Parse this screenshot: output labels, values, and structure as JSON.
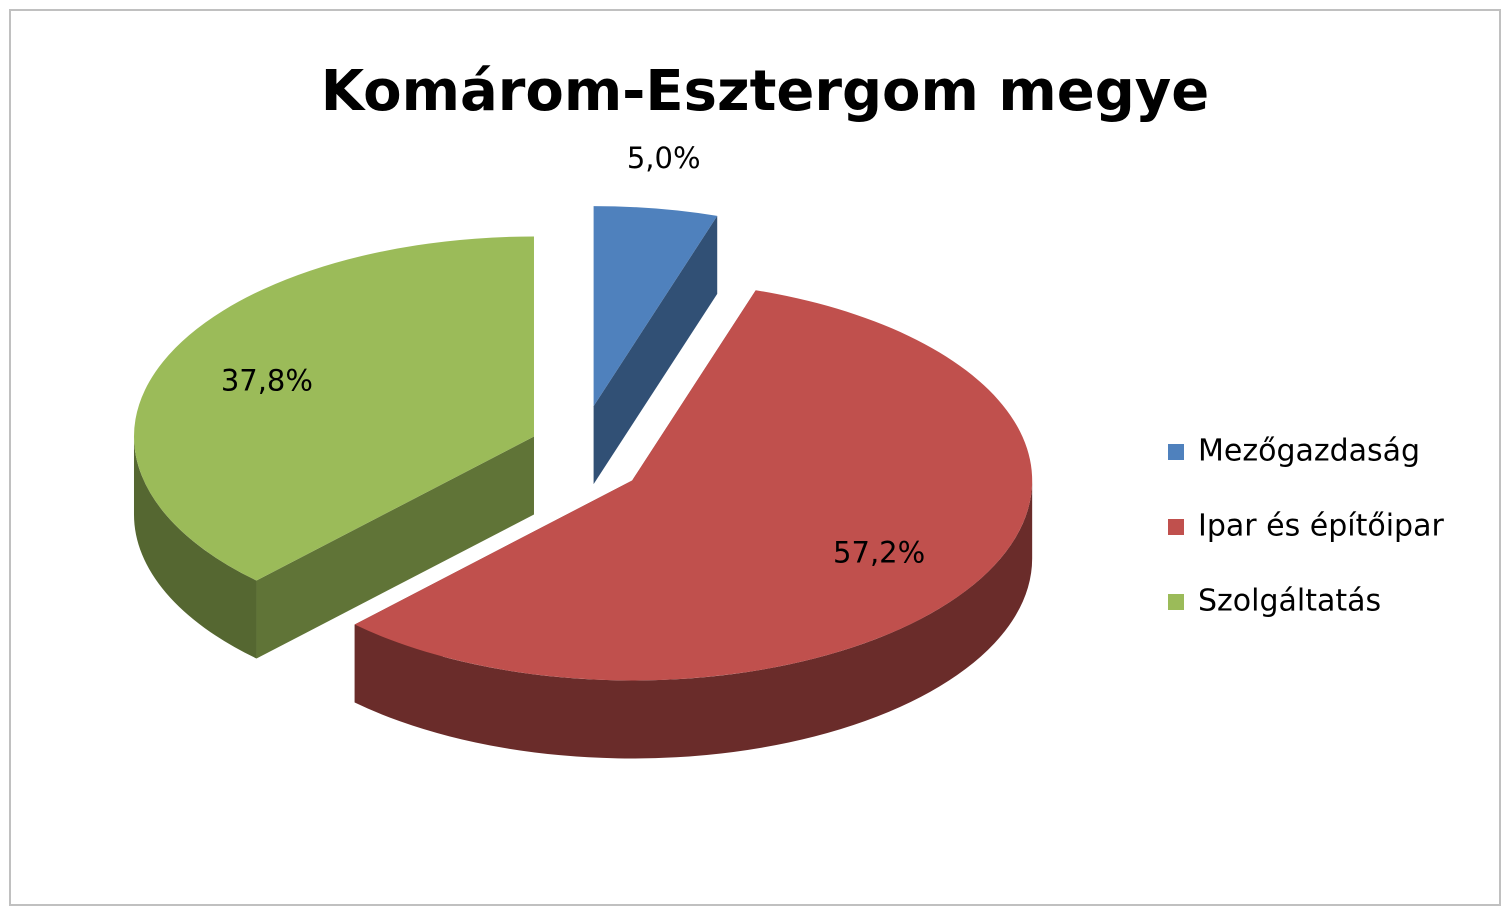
{
  "chart_data": {
    "type": "pie",
    "title": "Komárom-Esztergom megye",
    "categories": [
      "Mezőgazdaság",
      "Ipar és építőipar",
      "Szolgáltatás"
    ],
    "values": [
      5.0,
      57.2,
      37.8
    ],
    "value_labels": [
      "5,0%",
      "57,2%",
      "37,8%"
    ],
    "colors": [
      "#4f81bd",
      "#c0504d",
      "#9bbb59"
    ],
    "legend": "right"
  }
}
